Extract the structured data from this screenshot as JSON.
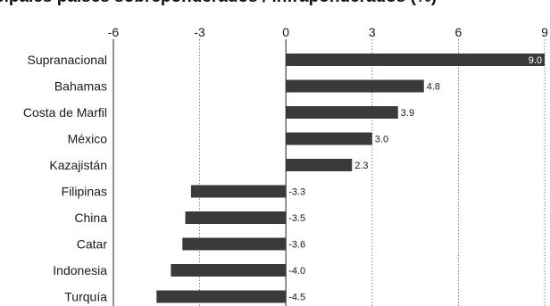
{
  "chart_data": {
    "type": "bar",
    "orientation": "horizontal",
    "title": "cipales países sobreponderados / infraponderados (%)",
    "categories": [
      "Supranacional",
      "Bahamas",
      "Costa de Marfil",
      "México",
      "Kazajistán",
      "Filipinas",
      "China",
      "Catar",
      "Indonesia",
      "Turquía"
    ],
    "values": [
      9.0,
      4.8,
      3.9,
      3.0,
      2.3,
      -3.3,
      -3.5,
      -3.6,
      -4.0,
      -4.5
    ],
    "value_labels": [
      "9.0",
      "4.8",
      "3.9",
      "3.0",
      "2.3",
      "-3.3",
      "-3.5",
      "-3.6",
      "-4.0",
      "-4.5"
    ],
    "x_ticks": [
      "-6",
      "-3",
      "0",
      "3",
      "6",
      "9"
    ],
    "xlim": [
      -6,
      9
    ],
    "grid": "vertical dotted",
    "colors": {
      "bar": "#3a3a3a",
      "text": "#1a1a1a",
      "grid": "#666666"
    }
  }
}
